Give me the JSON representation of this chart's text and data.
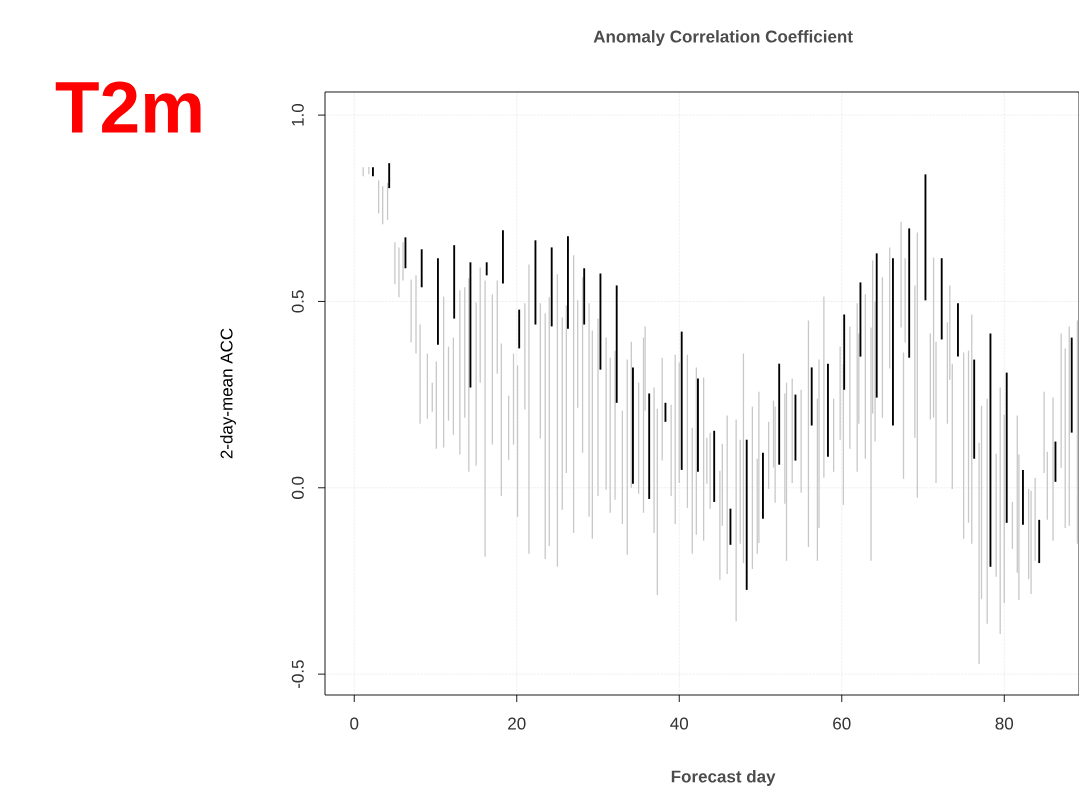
{
  "chart_data": {
    "type": "bar",
    "title": "Anomaly Correlation Coefficient",
    "xlabel": "Forecast day",
    "ylabel": "2-day-mean ACC",
    "annotations": [
      "T2m"
    ],
    "xlim": [
      -3.6,
      89.2
    ],
    "ylim": [
      -0.556,
      1.062
    ],
    "xticks": [
      0,
      20,
      40,
      60,
      80
    ],
    "yticks": [
      {
        "value": -0.5,
        "label": "-0.5"
      },
      {
        "value": 0,
        "label": "0.0"
      },
      {
        "value": 0.5,
        "label": "0.5"
      },
      {
        "value": 1,
        "label": "1.0"
      }
    ],
    "grid": true,
    "series": [
      {
        "color": "#c8c8c8",
        "x": [
          1.1,
          1.8,
          3.0,
          3.5,
          4.1,
          5.0,
          5.5,
          6.0,
          7.0,
          7.6,
          8.1,
          9.0,
          9.6,
          10.1,
          11.0,
          11.6,
          12.2,
          13.0,
          13.6,
          14.1,
          15.0,
          15.5,
          16.1,
          17.0,
          17.6,
          18.1,
          19.0,
          19.6,
          20.1,
          21.0,
          21.5,
          22.9,
          23.5,
          24.0,
          25.0,
          25.6,
          26.1,
          27.0,
          27.5,
          28.1,
          28.9,
          29.3,
          30.0,
          31.0,
          31.5,
          32.1,
          33.0,
          33.6,
          34.1,
          35.0,
          35.6,
          35.8,
          36.9,
          37.3,
          37.9,
          39.0,
          39.5,
          40.0,
          41.0,
          41.6,
          42.1,
          43.0,
          43.4,
          43.8,
          45.0,
          45.3,
          45.9,
          47.0,
          47.5,
          47.9,
          49.0,
          49.6,
          49.8,
          51.0,
          51.6,
          51.8,
          53.0,
          53.2,
          53.9,
          55.0,
          55.9,
          57.0,
          57.2,
          57.8,
          59.0,
          59.8,
          60.2,
          61.0,
          61.9,
          62.1,
          62.9,
          63.6,
          63.8,
          64.1,
          65.0,
          65.9,
          67.3,
          67.6,
          67.8,
          69.0,
          69.3,
          70.9,
          71.3,
          71.6,
          73.0,
          73.3,
          73.6,
          75.0,
          75.6,
          76.0,
          76.9,
          77.2,
          77.9,
          79.0,
          79.5,
          80.0,
          81.0,
          81.6,
          81.8,
          83.0,
          83.3,
          83.8,
          84.9,
          85.3,
          86.0,
          87.0,
          87.5,
          88.0,
          89.0
        ],
        "base": [
          0.836,
          0.841,
          0.736,
          0.707,
          0.719,
          0.546,
          0.511,
          0.556,
          0.39,
          0.36,
          0.172,
          0.185,
          0.204,
          0.105,
          0.108,
          0.18,
          0.142,
          0.089,
          0.188,
          0.043,
          0.059,
          0.282,
          -0.185,
          0.116,
          0.306,
          -0.022,
          0.075,
          0.116,
          -0.078,
          0.21,
          -0.177,
          0.132,
          -0.191,
          -0.156,
          -0.212,
          -0.059,
          0.04,
          -0.121,
          0.215,
          0.094,
          -0.078,
          -0.137,
          -0.022,
          -0.005,
          -0.067,
          -0.032,
          -0.097,
          -0.18,
          0.0,
          -0.016,
          -0.067,
          0.207,
          -0.121,
          -0.288,
          0.073,
          -0.022,
          -0.097,
          0.013,
          -0.054,
          -0.177,
          -0.126,
          -0.142,
          0.011,
          -0.056,
          -0.247,
          -0.102,
          -0.231,
          -0.358,
          -0.15,
          -0.202,
          -0.218,
          -0.177,
          -0.148,
          -0.003,
          0.054,
          -0.04,
          -0.043,
          -0.196,
          0.013,
          -0.013,
          -0.159,
          -0.196,
          -0.108,
          0.027,
          0.043,
          0.129,
          -0.046,
          0.105,
          0.043,
          0.172,
          0.078,
          -0.196,
          0.199,
          0.124,
          0.188,
          0.32,
          0.43,
          0.024,
          0.39,
          0.134,
          -0.027,
          0.183,
          0.188,
          0.013,
          0.172,
          0.29,
          -0.003,
          -0.137,
          -0.094,
          -0.15,
          -0.473,
          -0.298,
          -0.365,
          -0.239,
          -0.392,
          -0.309,
          -0.164,
          -0.228,
          -0.301,
          -0.245,
          -0.285,
          -0.196,
          0.04,
          -0.086,
          -0.142,
          0.054,
          -0.108,
          -0.102,
          -0.15
        ],
        "values": [
          0.024,
          0.02,
          0.089,
          0.102,
          0.099,
          0.113,
          0.134,
          0.103,
          0.169,
          0.21,
          0.266,
          0.175,
          0.078,
          0.234,
          0.405,
          0.199,
          0.261,
          0.441,
          0.35,
          0.519,
          0.438,
          0.309,
          0.741,
          0.403,
          0.25,
          0.409,
          0.172,
          0.244,
          0.406,
          0.285,
          0.776,
          0.363,
          0.659,
          0.667,
          0.785,
          0.516,
          0.449,
          0.745,
          0.288,
          0.471,
          0.573,
          0.559,
          0.476,
          0.408,
          0.416,
          0.4,
          0.304,
          0.524,
          0.392,
          0.298,
          0.47,
          0.226,
          0.39,
          0.5,
          0.276,
          0.245,
          0.454,
          0.323,
          0.411,
          0.338,
          0.449,
          0.438,
          0.123,
          0.204,
          0.293,
          0.22,
          0.425,
          0.541,
          0.279,
          0.562,
          0.436,
          0.255,
          0.406,
          0.18,
          0.18,
          0.258,
          0.296,
          0.478,
          0.28,
          0.276,
          0.608,
          0.435,
          0.452,
          0.486,
          0.196,
          0.25,
          0.377,
          0.328,
          0.452,
          0.242,
          0.441,
          0.626,
          0.411,
          0.376,
          0.377,
          0.325,
          0.284,
          0.339,
          0.226,
          0.409,
          0.712,
          0.231,
          0.43,
          0.379,
          0.272,
          0.253,
          0.336,
          0.5,
          0.462,
          0.615,
          0.594,
          0.518,
          0.604,
          0.33,
          0.661,
          0.505,
          0.126,
          0.422,
          0.39,
          0.242,
          0.277,
          0.223,
          0.218,
          0.183,
          0.384,
          0.36,
          0.482,
          0.535,
          0.599
        ]
      },
      {
        "color": "#000000",
        "x": [
          2.3,
          4.3,
          6.3,
          8.3,
          10.3,
          12.3,
          14.3,
          16.3,
          18.3,
          20.3,
          22.3,
          24.3,
          26.3,
          28.3,
          30.3,
          32.3,
          34.3,
          36.3,
          38.3,
          40.3,
          42.3,
          44.3,
          46.3,
          48.3,
          50.3,
          52.3,
          54.3,
          56.3,
          58.3,
          60.3,
          62.3,
          64.3,
          66.3,
          68.3,
          70.3,
          72.3,
          74.3,
          76.3,
          78.3,
          80.3,
          82.3,
          84.3,
          86.3,
          88.3
        ],
        "base": [
          0.836,
          0.804,
          0.589,
          0.538,
          0.384,
          0.454,
          0.269,
          0.57,
          0.548,
          0.374,
          0.438,
          0.433,
          0.427,
          0.438,
          0.317,
          0.228,
          0.011,
          -0.03,
          0.177,
          0.048,
          0.043,
          -0.038,
          -0.153,
          -0.274,
          -0.083,
          0.062,
          0.073,
          0.167,
          0.083,
          0.263,
          0.352,
          0.242,
          0.167,
          0.349,
          0.503,
          0.398,
          0.352,
          0.078,
          -0.212,
          -0.094,
          -0.099,
          -0.202,
          0.016,
          0.148
        ],
        "values": [
          0.024,
          0.067,
          0.083,
          0.102,
          0.232,
          0.197,
          0.336,
          0.035,
          0.143,
          0.104,
          0.226,
          0.212,
          0.248,
          0.151,
          0.258,
          0.315,
          0.312,
          0.283,
          0.051,
          0.371,
          0.25,
          0.191,
          0.097,
          0.403,
          0.177,
          0.271,
          0.177,
          0.156,
          0.25,
          0.202,
          0.199,
          0.387,
          0.449,
          0.347,
          0.338,
          0.218,
          0.143,
          0.266,
          0.626,
          0.403,
          0.147,
          0.116,
          0.108,
          0.255
        ]
      }
    ]
  }
}
